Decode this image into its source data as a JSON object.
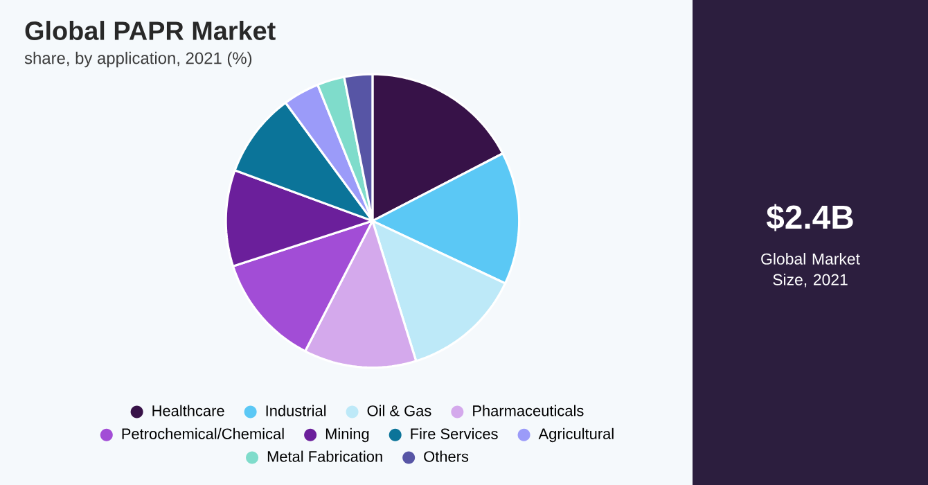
{
  "chart_data": {
    "type": "pie",
    "title": "Global PAPR Market",
    "subtitle": "share, by application, 2021 (%)",
    "categories": [
      "Healthcare",
      "Industrial",
      "Oil & Gas",
      "Pharmaceuticals",
      "Petrochemical/Chemical",
      "Mining",
      "Fire Services",
      "Agricultural",
      "Metal Fabrication",
      "Others"
    ],
    "values": [
      17.4,
      14.6,
      13.2,
      12.4,
      12.4,
      10.6,
      9.3,
      4.0,
      3.0,
      3.1
    ],
    "colors": [
      "#371248",
      "#5bc8f5",
      "#bde9f8",
      "#d4a9ec",
      "#a24dd6",
      "#6b1f9b",
      "#0b7499",
      "#9b9bf9",
      "#7fdccb",
      "#5755a5"
    ],
    "legend": "bottom",
    "annotations": [
      "$2.4B",
      "Global Market Size, 2021"
    ]
  }
}
